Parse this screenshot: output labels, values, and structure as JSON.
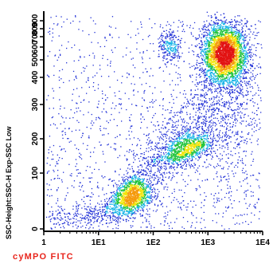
{
  "chart_data": {
    "type": "scatter",
    "subtype": "density-dot-plot",
    "xlabel": "cyMPO FITC",
    "ylabel": "SSC-Height:SSC-H Exp-SSC Low",
    "x_scale": "log",
    "xlim": [
      1,
      10000
    ],
    "x_ticks": [
      {
        "value": 1,
        "label": "1"
      },
      {
        "value": 10,
        "label": "1E1"
      },
      {
        "value": 100,
        "label": "1E2"
      },
      {
        "value": 1000,
        "label": "1E3"
      },
      {
        "value": 10000,
        "label": "1E4"
      }
    ],
    "y_scale": "biexponential",
    "ylim": [
      0,
      1000
    ],
    "y_ticks": [
      {
        "value": 0,
        "label": "0"
      },
      {
        "value": 100,
        "label": "100"
      },
      {
        "value": 200,
        "label": "200"
      },
      {
        "value": 300,
        "label": "300"
      },
      {
        "value": 400,
        "label": "400"
      },
      {
        "value": 500,
        "label": "500"
      },
      {
        "value": 600,
        "label": "600"
      },
      {
        "value": 700,
        "label": "700"
      },
      {
        "value": 800,
        "label": "800"
      },
      {
        "value": 900,
        "label": "900"
      }
    ],
    "grid": false,
    "legend": "none",
    "colors": {
      "axis_title_x": "#e8251c",
      "axis_title_y": "#000000",
      "density_scale": [
        "#1f2fd6",
        "#14b3e6",
        "#1ec23a",
        "#f2e40a",
        "#f59a0c",
        "#e21313"
      ]
    },
    "clusters": [
      {
        "x_center": 40,
        "y_center": 60,
        "n_points": 1400
      },
      {
        "x_center": 2000,
        "y_center": 550,
        "n_points": 3200
      },
      {
        "x_center": 400,
        "y_center": 170,
        "n_points": 900
      },
      {
        "x_center": 200,
        "y_center": 620,
        "n_points": 250
      },
      {
        "x_center": 8,
        "y_center": 25,
        "n_points": 300
      }
    ]
  }
}
